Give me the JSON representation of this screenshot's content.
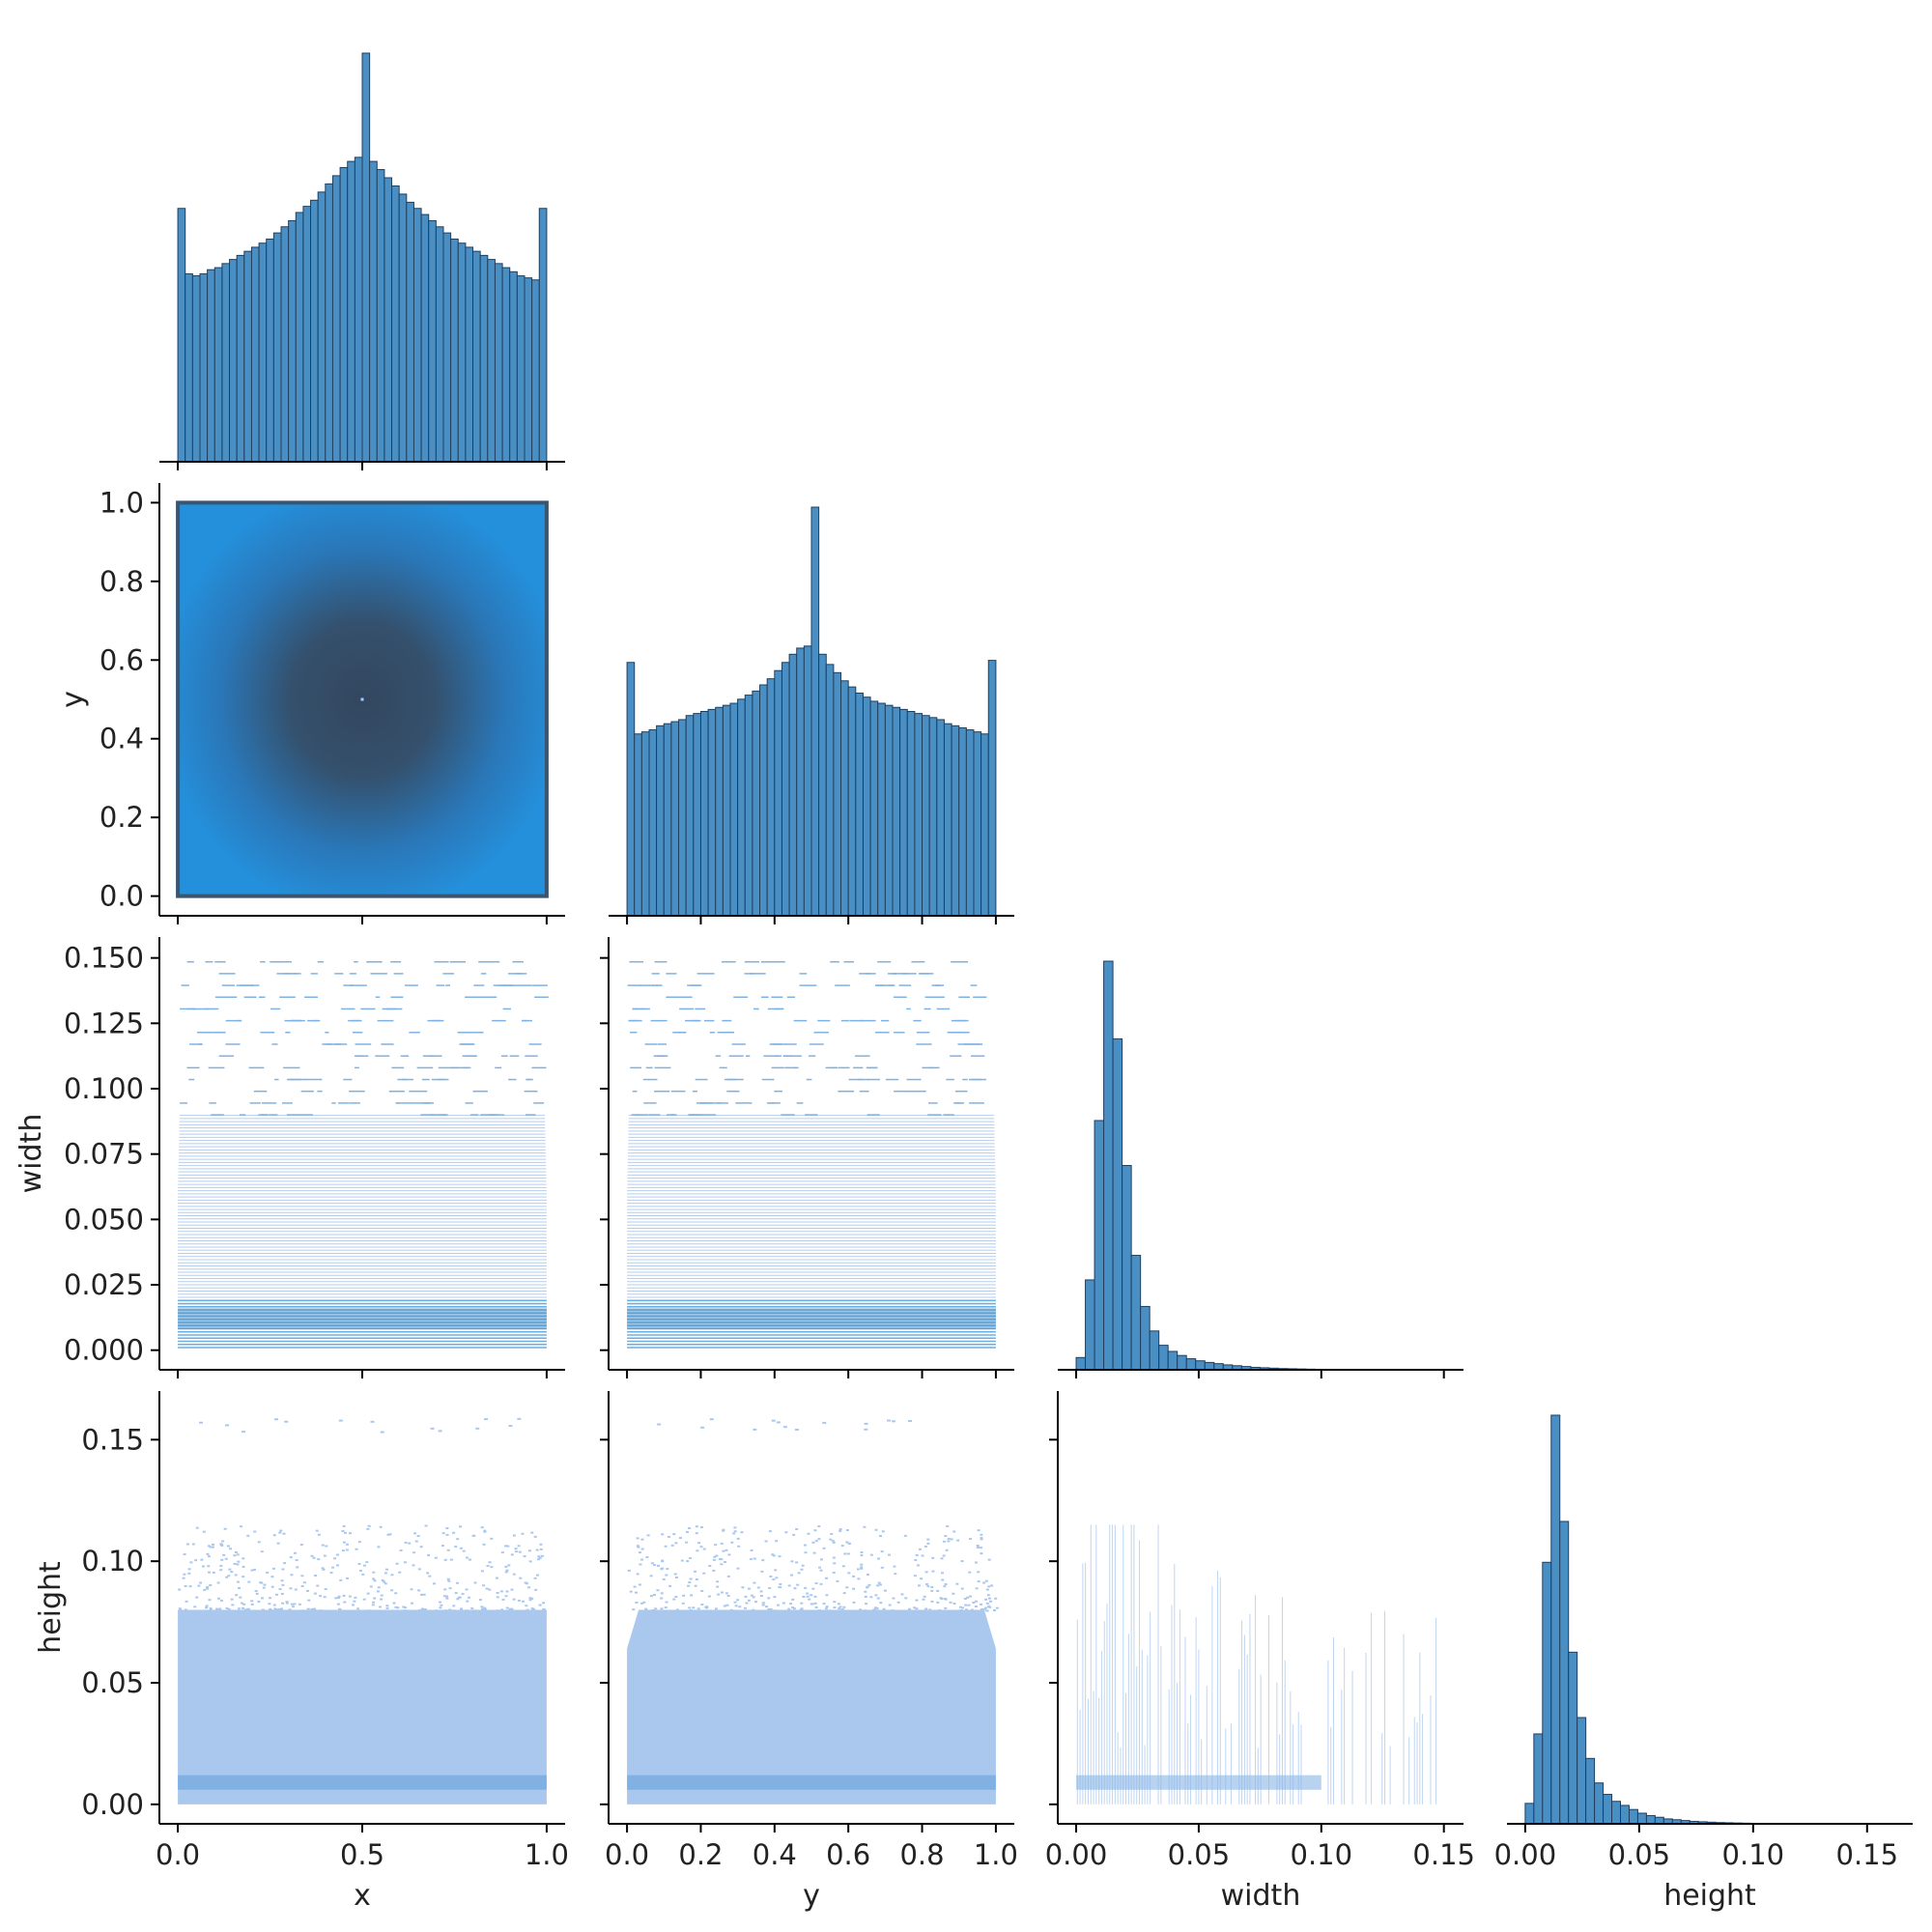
{
  "chart_data": {
    "type": "pairplot",
    "variables": [
      "x",
      "y",
      "width",
      "height"
    ],
    "layout": "corner",
    "colors": {
      "hist_bar": "#4a8fc4",
      "hist_edge": "#1f3f5f",
      "scatter_dense": "#3a5570",
      "scatter_main": "#2d8fd8",
      "scatter_light": "#aac8ee",
      "axis": "#000000"
    },
    "axes": {
      "x": {
        "lim": [
          -0.05,
          1.05
        ],
        "ticks": [
          0.0,
          0.5,
          1.0
        ],
        "tick_labels": [
          "0.0",
          "0.5",
          "1.0"
        ]
      },
      "y": {
        "lim": [
          -0.05,
          1.05
        ],
        "ticks": [
          0.0,
          0.2,
          0.4,
          0.6,
          0.8,
          1.0
        ],
        "tick_labels": [
          "0.0",
          "0.2",
          "0.4",
          "0.6",
          "0.8",
          "1.0"
        ]
      },
      "width": {
        "lim": [
          -0.0075,
          0.158
        ],
        "ticks": [
          0.0,
          0.025,
          0.05,
          0.075,
          0.1,
          0.125,
          0.15
        ],
        "tick_labels": [
          "0.000",
          "0.025",
          "0.050",
          "0.075",
          "0.100",
          "0.125",
          "0.150"
        ],
        "x_ticks": [
          0.0,
          0.05,
          0.1,
          0.15
        ],
        "x_tick_labels": [
          "0.00",
          "0.05",
          "0.10",
          "0.15"
        ]
      },
      "height": {
        "lim": [
          -0.008,
          0.17
        ],
        "ticks": [
          0.0,
          0.05,
          0.1,
          0.15
        ],
        "tick_labels": [
          "0.00",
          "0.05",
          "0.10",
          "0.15"
        ]
      }
    },
    "xlabels": [
      "x",
      "y",
      "width",
      "height"
    ],
    "ylabels": [
      "",
      "y",
      "width",
      "height"
    ],
    "histograms": {
      "x": {
        "bin_start": 0.0,
        "bin_width": 0.02,
        "counts": [
          0.62,
          0.46,
          0.455,
          0.46,
          0.47,
          0.475,
          0.485,
          0.495,
          0.505,
          0.515,
          0.525,
          0.535,
          0.545,
          0.56,
          0.575,
          0.59,
          0.61,
          0.625,
          0.64,
          0.66,
          0.68,
          0.7,
          0.72,
          0.735,
          0.745,
          1.0,
          0.735,
          0.715,
          0.695,
          0.675,
          0.655,
          0.635,
          0.62,
          0.605,
          0.59,
          0.575,
          0.56,
          0.545,
          0.535,
          0.525,
          0.515,
          0.505,
          0.495,
          0.485,
          0.475,
          0.465,
          0.455,
          0.45,
          0.445,
          0.62
        ]
      },
      "y": {
        "bin_start": 0.0,
        "bin_width": 0.02,
        "counts": [
          0.62,
          0.445,
          0.45,
          0.455,
          0.465,
          0.47,
          0.475,
          0.48,
          0.49,
          0.495,
          0.5,
          0.505,
          0.51,
          0.515,
          0.52,
          0.53,
          0.54,
          0.55,
          0.565,
          0.58,
          0.6,
          0.62,
          0.64,
          0.655,
          0.66,
          1.0,
          0.64,
          0.615,
          0.595,
          0.575,
          0.56,
          0.545,
          0.535,
          0.525,
          0.52,
          0.515,
          0.51,
          0.505,
          0.5,
          0.495,
          0.49,
          0.485,
          0.48,
          0.47,
          0.465,
          0.46,
          0.455,
          0.45,
          0.445,
          0.625
        ]
      },
      "width": {
        "bin_start": 0.0,
        "bin_width": 0.00375,
        "counts": [
          0.03,
          0.22,
          0.61,
          1.0,
          0.81,
          0.5,
          0.28,
          0.155,
          0.095,
          0.06,
          0.045,
          0.035,
          0.027,
          0.022,
          0.018,
          0.015,
          0.012,
          0.01,
          0.008,
          0.006,
          0.005,
          0.004,
          0.003,
          0.0025,
          0.002,
          0.0015,
          0.001,
          0.001,
          0.0008,
          0.0006,
          0.0005,
          0.0004,
          0.0004,
          0.0003,
          0.0003,
          0.0002,
          0.0002,
          0.0002,
          0.0001,
          0.0001
        ]
      },
      "height": {
        "bin_start": 0.0,
        "bin_width": 0.0038,
        "counts": [
          0.05,
          0.22,
          0.64,
          1.0,
          0.74,
          0.42,
          0.26,
          0.16,
          0.1,
          0.072,
          0.055,
          0.045,
          0.035,
          0.026,
          0.02,
          0.016,
          0.012,
          0.01,
          0.008,
          0.006,
          0.005,
          0.004,
          0.003,
          0.0025,
          0.002,
          0.0015,
          0.001,
          0.001,
          0.0008,
          0.0006,
          0.0005,
          0.0004,
          0.0004,
          0.0003,
          0.0003,
          0.0002,
          0.0002,
          0.0002,
          0.0001,
          0.0001,
          0.0001,
          0.0001,
          0.0001,
          0.0001
        ]
      }
    },
    "scatter_regions": {
      "x_y": {
        "x_range": [
          0.0,
          1.0
        ],
        "y_range": [
          0.0,
          1.0
        ],
        "dense_center": [
          0.5,
          0.5
        ]
      },
      "x_width": {
        "x_range": [
          0.0,
          1.0
        ],
        "solid_y_max": 0.09,
        "sparse_y_max": 0.152
      },
      "y_width": {
        "x_range": [
          0.0,
          1.0
        ],
        "solid_y_max": 0.09,
        "sparse_y_max": 0.152
      },
      "x_height": {
        "x_range": [
          0.0,
          1.0
        ],
        "solid_y_max": 0.08,
        "sparse_y_max": 0.115,
        "outlier_y": 0.156
      },
      "y_height": {
        "x_range": [
          0.0,
          1.0
        ],
        "solid_y_max": 0.08,
        "sparse_y_max": 0.115,
        "outlier_y": 0.156
      },
      "width_height": {
        "x_range": [
          0.0,
          0.152
        ],
        "y_range": [
          0.0,
          0.115
        ]
      }
    }
  }
}
